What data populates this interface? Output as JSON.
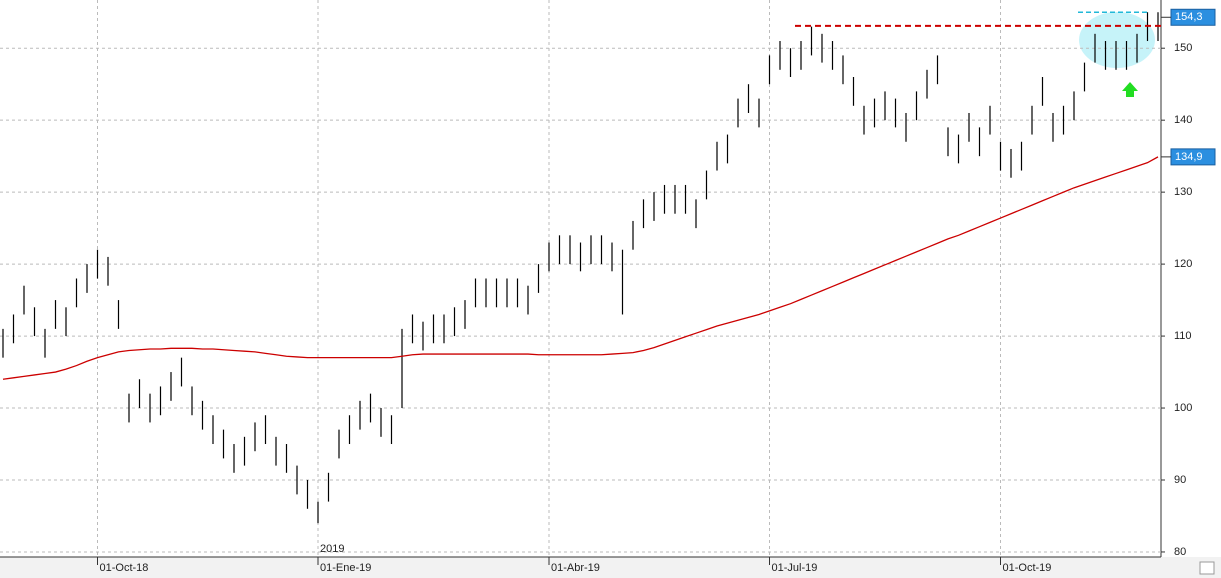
{
  "chart_data": {
    "type": "range_bar",
    "categories": [
      null,
      null,
      null,
      null,
      null,
      null,
      null,
      null,
      null,
      "01-Oct-18",
      null,
      null,
      null,
      null,
      null,
      null,
      null,
      null,
      null,
      null,
      null,
      null,
      null,
      null,
      null,
      null,
      null,
      null,
      null,
      null,
      "01-Ene-19",
      null,
      null,
      null,
      null,
      null,
      null,
      null,
      null,
      null,
      null,
      null,
      null,
      null,
      null,
      null,
      null,
      null,
      null,
      null,
      null,
      null,
      "01-Abr-19",
      null,
      null,
      null,
      null,
      null,
      null,
      null,
      null,
      null,
      null,
      null,
      null,
      null,
      null,
      null,
      null,
      null,
      null,
      null,
      null,
      "01-Jul-19",
      null,
      null,
      null,
      null,
      null,
      null,
      null,
      null,
      null,
      null,
      null,
      null,
      null,
      null,
      null,
      null,
      null,
      null,
      null,
      null,
      null,
      "01-Oct-19",
      null,
      null,
      null,
      null,
      null,
      null,
      null,
      null,
      null,
      null,
      null,
      null,
      null,
      null,
      null
    ],
    "high": [
      111,
      113,
      117,
      114,
      111,
      115,
      114,
      118,
      120,
      122,
      121,
      115,
      102,
      104,
      102,
      103,
      105,
      107,
      103,
      101,
      99,
      97,
      95,
      96,
      98,
      99,
      96,
      95,
      92,
      90,
      87,
      91,
      97,
      99,
      101,
      102,
      100,
      99,
      111,
      113,
      112,
      113,
      113,
      114,
      115,
      118,
      118,
      118,
      118,
      118,
      117,
      120,
      123,
      124,
      124,
      123,
      124,
      124,
      123,
      122,
      126,
      129,
      130,
      131,
      131,
      131,
      129,
      133,
      137,
      138,
      143,
      145,
      143,
      149,
      151,
      150,
      151,
      153,
      152,
      151,
      149,
      146,
      142,
      143,
      144,
      143,
      141,
      144,
      147,
      149,
      139,
      138,
      141,
      139,
      142,
      137,
      136,
      137,
      142,
      146,
      141,
      142,
      144,
      148,
      152,
      151,
      151,
      151,
      152,
      155,
      155
    ],
    "low": [
      107,
      109,
      113,
      110,
      107,
      111,
      110,
      114,
      116,
      118,
      117,
      111,
      98,
      100,
      98,
      99,
      101,
      103,
      99,
      97,
      95,
      93,
      91,
      92,
      94,
      95,
      92,
      91,
      88,
      86,
      84,
      87,
      93,
      95,
      97,
      98,
      96,
      95,
      100,
      109,
      108,
      109,
      109,
      110,
      111,
      114,
      114,
      114,
      114,
      114,
      113,
      116,
      119,
      120,
      120,
      119,
      120,
      120,
      119,
      113,
      122,
      125,
      126,
      127,
      127,
      127,
      125,
      129,
      133,
      134,
      139,
      141,
      139,
      145,
      147,
      146,
      147,
      149,
      148,
      147,
      145,
      142,
      138,
      139,
      140,
      139,
      137,
      140,
      143,
      145,
      135,
      134,
      137,
      135,
      138,
      133,
      132,
      133,
      138,
      142,
      137,
      138,
      140,
      144,
      148,
      147,
      147,
      147,
      148,
      151,
      151
    ],
    "bar_color": "#000000",
    "moving_average": [
      104,
      104.2,
      104.4,
      104.6,
      104.8,
      105,
      105.4,
      105.9,
      106.5,
      107,
      107.4,
      107.8,
      108,
      108.1,
      108.2,
      108.2,
      108.3,
      108.3,
      108.3,
      108.2,
      108.2,
      108.1,
      108,
      107.9,
      107.8,
      107.6,
      107.4,
      107.2,
      107.1,
      107,
      107,
      107,
      107,
      107,
      107,
      107,
      107,
      107,
      107.2,
      107.4,
      107.5,
      107.5,
      107.5,
      107.5,
      107.5,
      107.5,
      107.5,
      107.5,
      107.5,
      107.5,
      107.5,
      107.4,
      107.4,
      107.4,
      107.4,
      107.4,
      107.4,
      107.4,
      107.5,
      107.6,
      107.7,
      108,
      108.4,
      108.9,
      109.4,
      109.9,
      110.4,
      110.9,
      111.4,
      111.8,
      112.2,
      112.6,
      113,
      113.5,
      114,
      114.5,
      115.1,
      115.7,
      116.3,
      116.9,
      117.5,
      118.1,
      118.7,
      119.3,
      119.9,
      120.5,
      121.1,
      121.7,
      122.3,
      122.9,
      123.5,
      124,
      124.6,
      125.2,
      125.8,
      126.4,
      127,
      127.6,
      128.2,
      128.8,
      129.4,
      130,
      130.6,
      131.1,
      131.6,
      132.1,
      132.6,
      133.1,
      133.6,
      134.1,
      134.9
    ],
    "ma_color": "#cc0000",
    "year_label": "2019",
    "resistance": 153.1,
    "resistance_color": "#cc0000",
    "top_level": 155,
    "top_color": "#22b8d8",
    "last_price": {
      "value": 154.3,
      "label": "154,3"
    },
    "ma_last": {
      "value": 134.9,
      "label": "134,9"
    },
    "ylim": [
      79.3,
      156.7
    ],
    "yticks": [
      80,
      90,
      100,
      110,
      120,
      130,
      140,
      150
    ],
    "grid": true
  }
}
